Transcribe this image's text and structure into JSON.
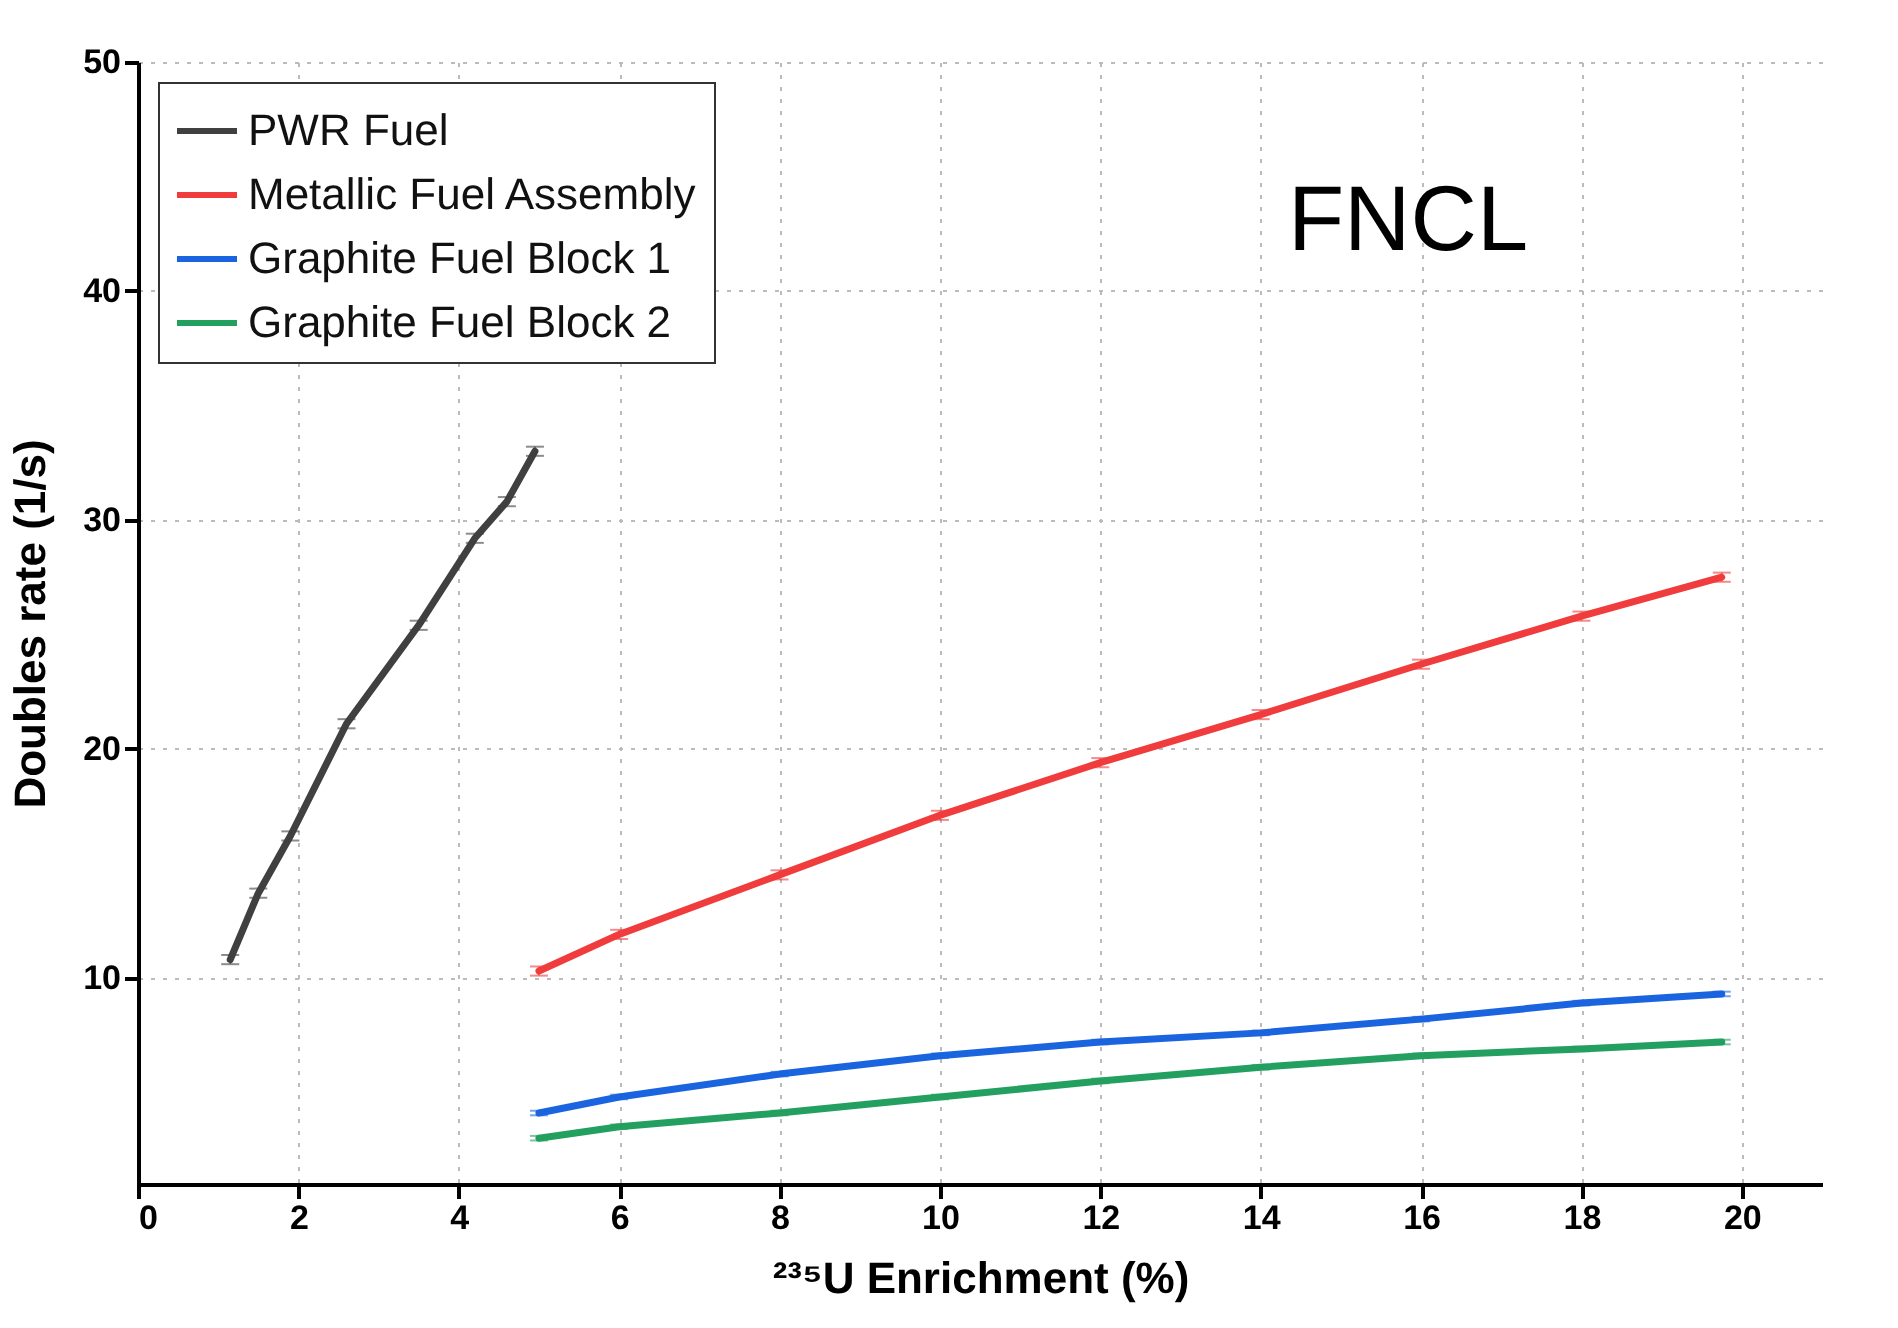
{
  "chart_data": {
    "type": "line",
    "xlabel": "²³⁵U Enrichment (%)",
    "ylabel": "Doubles rate (1/s)",
    "annotations": [
      "FNCL"
    ],
    "xlim": [
      0,
      21
    ],
    "xticks": [
      0,
      2,
      4,
      6,
      8,
      10,
      12,
      14,
      16,
      18,
      20
    ],
    "ylim": [
      1,
      50
    ],
    "yticks": [
      10,
      20,
      30,
      40,
      50
    ],
    "grid": true,
    "legend": "top left",
    "marker": "none",
    "line_style": "solid",
    "series": [
      {
        "name": "PWR Fuel",
        "color": "#404040",
        "x": [
          1.15,
          1.5,
          1.9,
          2.6,
          3.5,
          4.2,
          4.6,
          4.95
        ],
        "values": [
          10.8,
          13.7,
          16.2,
          21.1,
          25.4,
          29.2,
          30.8,
          33.0
        ],
        "errors": [
          0.2,
          0.2,
          0.2,
          0.2,
          0.2,
          0.2,
          0.2,
          0.2
        ]
      },
      {
        "name": "Metallic Fuel Assembly",
        "color": "#f03c3c",
        "x": [
          5,
          6,
          8,
          10,
          12,
          14,
          16,
          18,
          19.75
        ],
        "values": [
          10.3,
          11.9,
          14.5,
          17.1,
          19.4,
          21.5,
          23.7,
          25.8,
          27.5
        ],
        "errors": [
          0.2,
          0.2,
          0.2,
          0.2,
          0.2,
          0.2,
          0.2,
          0.2,
          0.2
        ]
      },
      {
        "name": "Graphite Fuel Block 1",
        "color": "#1a64e0",
        "x": [
          5,
          6,
          8,
          10,
          12,
          14,
          16,
          18,
          19.75
        ],
        "values": [
          4.1,
          4.8,
          5.8,
          6.6,
          7.2,
          7.6,
          8.2,
          8.9,
          9.3
        ],
        "errors": [
          0.1,
          0.1,
          0.1,
          0.1,
          0.1,
          0.1,
          0.1,
          0.1,
          0.1
        ]
      },
      {
        "name": "Graphite Fuel Block 2",
        "color": "#23a060",
        "x": [
          5,
          6,
          8,
          10,
          12,
          14,
          16,
          18,
          19.75
        ],
        "values": [
          3.0,
          3.5,
          4.1,
          4.8,
          5.5,
          6.1,
          6.6,
          6.9,
          7.2
        ],
        "errors": [
          0.1,
          0.1,
          0.1,
          0.1,
          0.1,
          0.1,
          0.1,
          0.1,
          0.1
        ]
      }
    ]
  }
}
